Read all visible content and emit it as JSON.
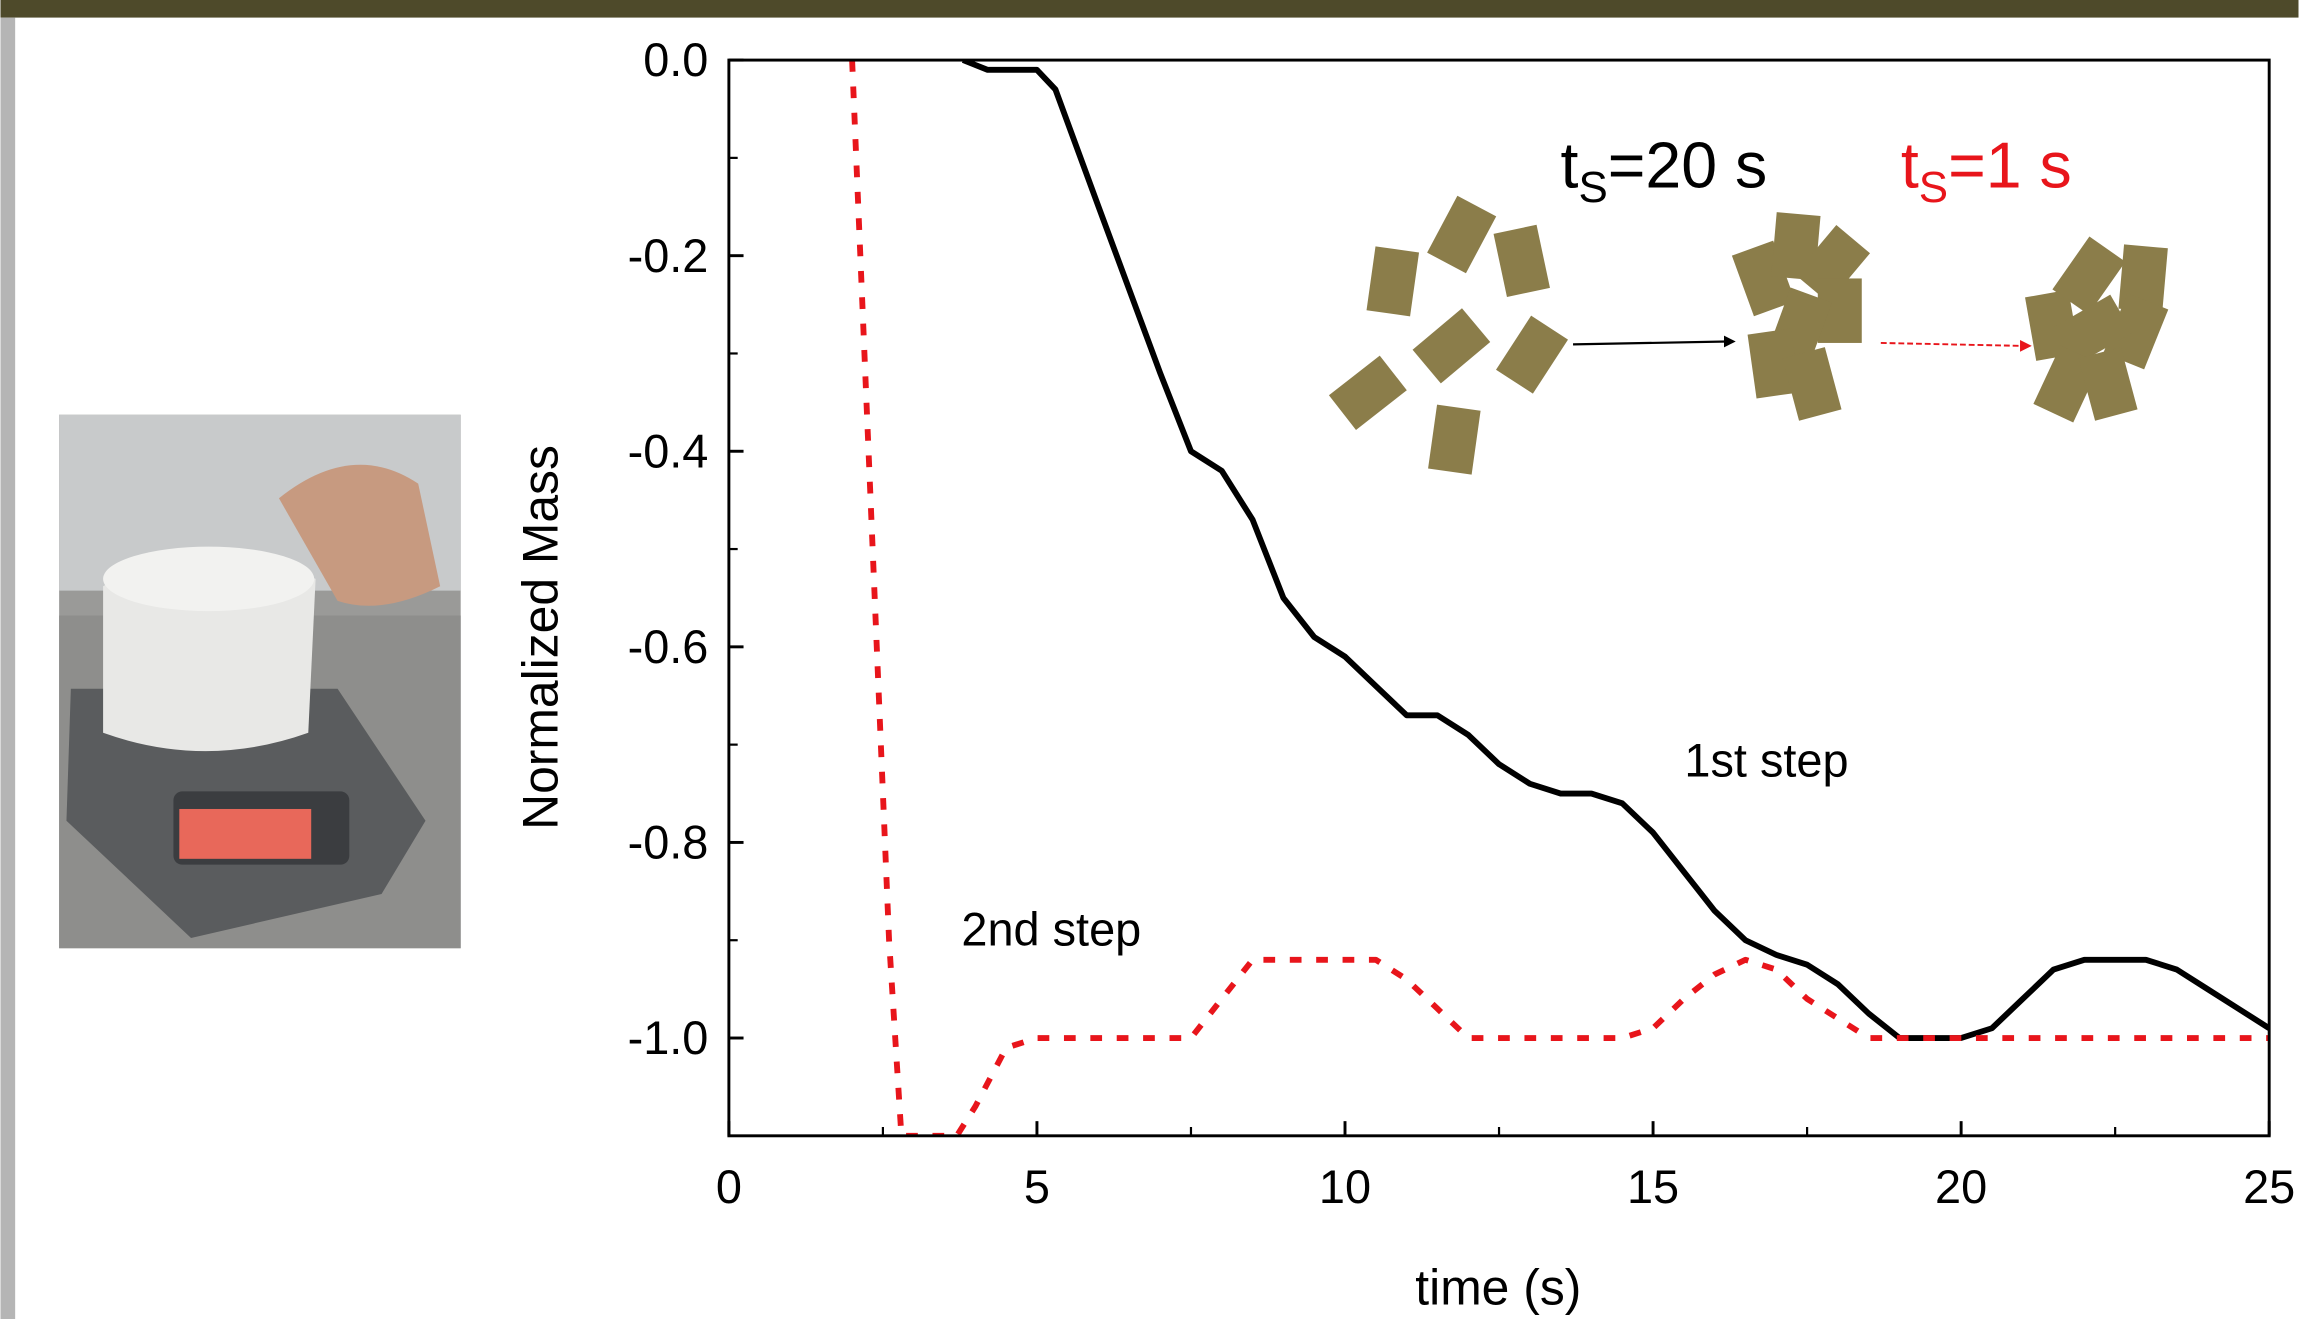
{
  "chart_data": {
    "type": "line",
    "xlabel": "time (s)",
    "ylabel": "Normalized Mass",
    "xlim": [
      0,
      25
    ],
    "ylim": [
      -1.1,
      0
    ],
    "xticks": [
      0,
      5,
      10,
      15,
      20,
      25
    ],
    "yticks": [
      {
        "value": 0,
        "label": "0.0"
      },
      -0.2,
      -0.4,
      -0.6,
      -0.8,
      {
        "value": -1,
        "label": "-1.0"
      }
    ],
    "xticks_minor": [
      2.5,
      7.5,
      12.5,
      17.5,
      22.5
    ],
    "yticks_minor": [
      -0.1,
      -0.3,
      -0.5,
      -0.7,
      -0.9
    ],
    "series": [
      {
        "name": "1st step",
        "color": "#000000",
        "style": "solid",
        "x": [
          3.8,
          4.2,
          5,
          5.3,
          6,
          7,
          7.5,
          8,
          8.5,
          9,
          9.5,
          10,
          10.5,
          11,
          11.5,
          12,
          12.5,
          13,
          13.5,
          14,
          14.5,
          15,
          15.5,
          16,
          16.5,
          17,
          17.5,
          18,
          18.5,
          19,
          20,
          20.5,
          21,
          21.5,
          22,
          23,
          23.5,
          24,
          24.5,
          25
        ],
        "values": [
          0,
          -0.01,
          -0.01,
          -0.03,
          -0.15,
          -0.32,
          -0.4,
          -0.42,
          -0.47,
          -0.55,
          -0.59,
          -0.61,
          -0.64,
          -0.67,
          -0.67,
          -0.69,
          -0.72,
          -0.74,
          -0.75,
          -0.75,
          -0.76,
          -0.79,
          -0.83,
          -0.87,
          -0.9,
          -0.915,
          -0.925,
          -0.945,
          -0.975,
          -1,
          -1,
          -0.99,
          -0.96,
          -0.93,
          -0.92,
          -0.92,
          -0.93,
          -0.95,
          -0.97,
          -0.99
        ]
      },
      {
        "name": "2nd step",
        "color": "#e8151b",
        "style": "dotted",
        "x": [
          2,
          2.2,
          2.4,
          2.6,
          2.8,
          3.7,
          4,
          4.5,
          5,
          7.5,
          8,
          8.5,
          10.5,
          11,
          11.5,
          12,
          14.5,
          15,
          15.5,
          16,
          16.5,
          17,
          17.5,
          18,
          18.5,
          25
        ],
        "values": [
          0,
          -0.3,
          -0.6,
          -0.9,
          -1.1,
          -1.1,
          -1.07,
          -1.01,
          -1,
          -1,
          -0.96,
          -0.92,
          -0.92,
          -0.94,
          -0.97,
          -1,
          -1,
          -0.99,
          -0.96,
          -0.935,
          -0.92,
          -0.93,
          -0.96,
          -0.98,
          -1,
          -1
        ]
      }
    ],
    "notes": [
      {
        "t": "t",
        "sub": "S",
        "rest": "=20 s",
        "color": "#000000"
      },
      {
        "t": "t",
        "sub": "S",
        "rest": "=1 s",
        "color": "#e8151b"
      }
    ]
  }
}
